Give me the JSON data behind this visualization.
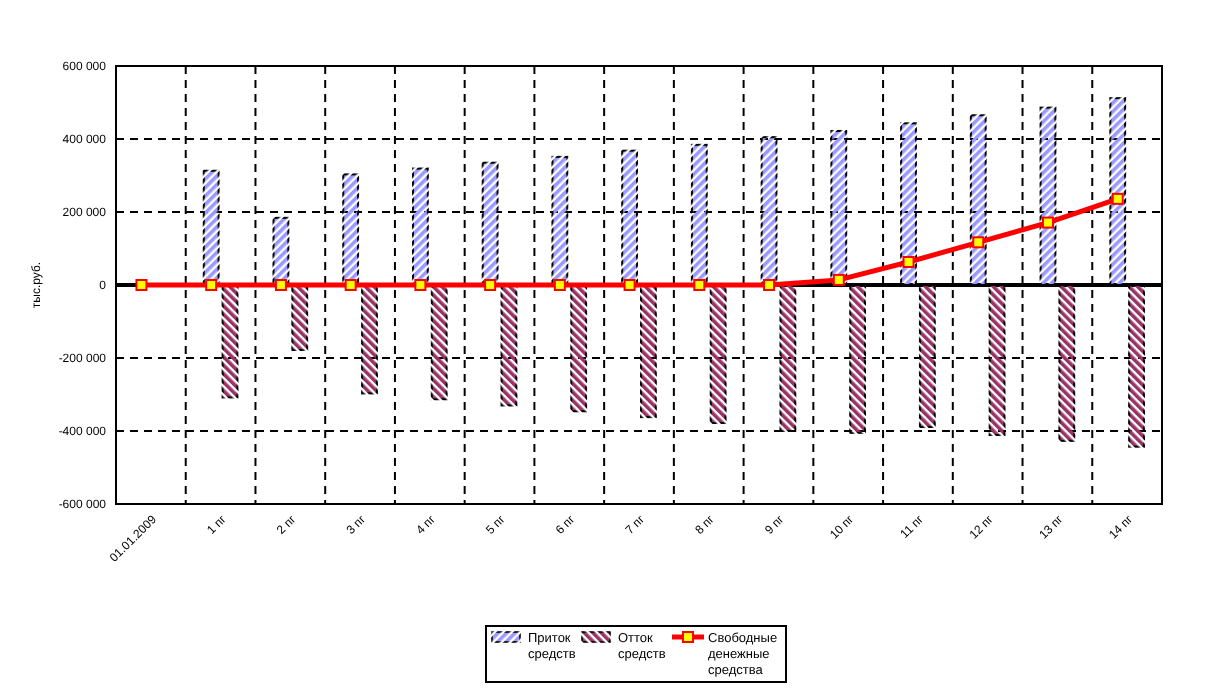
{
  "chart_data": {
    "type": "bar",
    "ylabel": "тыс.руб.",
    "categories": [
      "01.01.2009",
      "1 пг",
      "2 пг",
      "3 пг",
      "4 пг",
      "5 пг",
      "6 пг",
      "7 пг",
      "8 пг",
      "9 пг",
      "10 пг",
      "11 пг",
      "12 пг",
      "13 пг",
      "14 пг"
    ],
    "series": [
      {
        "name": "Приток средств",
        "color": "#9999ff",
        "values": [
          null,
          313000,
          184000,
          303000,
          319000,
          335000,
          351000,
          368000,
          384000,
          405000,
          422000,
          443000,
          465000,
          486000,
          512000
        ]
      },
      {
        "name": "Отток средств",
        "color": "#993366",
        "values": [
          null,
          -308000,
          -178000,
          -297000,
          -313000,
          -330000,
          -346000,
          -362000,
          -378000,
          -400000,
          -405000,
          -389000,
          -411000,
          -427000,
          -443000
        ]
      },
      {
        "name": "Свободные денежные средства",
        "type": "line",
        "color": "#ff0000",
        "values": [
          0,
          0,
          0,
          0,
          0,
          0,
          0,
          0,
          0,
          0,
          14000,
          63000,
          117000,
          171000,
          236000
        ]
      }
    ],
    "ylim": [
      -600000,
      600000
    ],
    "yticks": [
      {
        "value": -600000,
        "label": "-600 000"
      },
      {
        "value": -400000,
        "label": "-400 000"
      },
      {
        "value": -200000,
        "label": "-200 000"
      },
      0,
      {
        "value": 200000,
        "label": "200 000"
      },
      {
        "value": 400000,
        "label": "400 000"
      },
      {
        "value": 600000,
        "label": "600 000"
      }
    ],
    "grid": true,
    "legend": "bottom",
    "marker": "square"
  }
}
